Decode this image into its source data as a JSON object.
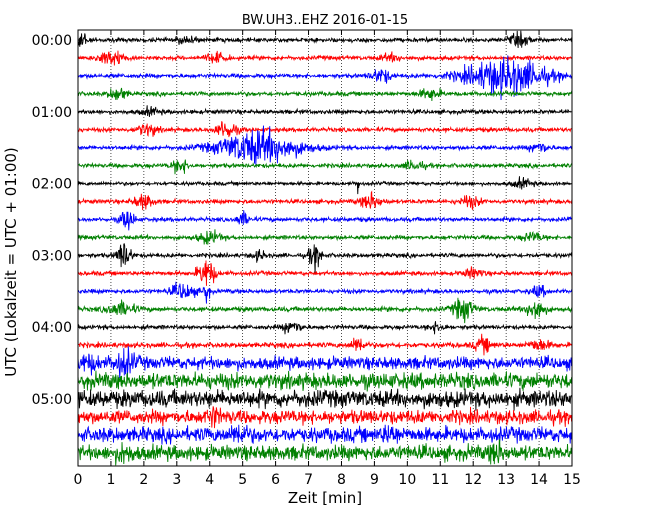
{
  "chart_data": {
    "type": "line",
    "title": "BW.UH3..EHZ 2016-01-15",
    "xlabel": "Zeit  [min]",
    "ylabel": "UTC (Lokalzeit = UTC + 01:00)",
    "xlim": [
      0,
      15
    ],
    "x_ticks": [
      0,
      1,
      2,
      3,
      4,
      5,
      6,
      7,
      8,
      9,
      10,
      11,
      12,
      13,
      14,
      15
    ],
    "y_ticks": [
      "00:00",
      "01:00",
      "02:00",
      "03:00",
      "04:00",
      "05:00"
    ],
    "grid": "vertical dotted at each minute",
    "trace_minutes": 15,
    "colors_cycle": [
      "#000000",
      "#ff0000",
      "#0000ff",
      "#008000"
    ],
    "series": [
      {
        "start": "00:00",
        "color": "#000000",
        "amplitude": 0.18,
        "events": [
          {
            "t": 0.1,
            "a": 0.9,
            "w": 0.15
          },
          {
            "t": 3.3,
            "a": 0.4,
            "w": 0.25
          },
          {
            "t": 13.4,
            "a": 0.5,
            "w": 0.3
          }
        ]
      },
      {
        "start": "00:15",
        "color": "#ff0000",
        "amplitude": 0.18,
        "events": [
          {
            "t": 1.0,
            "a": 0.7,
            "w": 0.35
          },
          {
            "t": 4.2,
            "a": 0.4,
            "w": 0.3
          },
          {
            "t": 9.5,
            "a": 0.3,
            "w": 0.3
          }
        ]
      },
      {
        "start": "00:30",
        "color": "#0000ff",
        "amplitude": 0.18,
        "events": [
          {
            "t": 9.2,
            "a": 0.6,
            "w": 0.3
          },
          {
            "t": 13.0,
            "a": 1.6,
            "w": 1.2
          }
        ]
      },
      {
        "start": "00:45",
        "color": "#008000",
        "amplitude": 0.18,
        "events": [
          {
            "t": 1.2,
            "a": 0.6,
            "w": 0.25
          },
          {
            "t": 10.7,
            "a": 0.5,
            "w": 0.3
          }
        ]
      },
      {
        "start": "01:00",
        "color": "#000000",
        "amplitude": 0.18,
        "events": [
          {
            "t": 2.2,
            "a": 0.3,
            "w": 0.3
          }
        ]
      },
      {
        "start": "01:15",
        "color": "#ff0000",
        "amplitude": 0.18,
        "events": [
          {
            "t": 2.1,
            "a": 0.5,
            "w": 0.3
          },
          {
            "t": 4.5,
            "a": 0.8,
            "w": 0.3
          }
        ]
      },
      {
        "start": "01:30",
        "color": "#0000ff",
        "amplitude": 0.18,
        "events": [
          {
            "t": 5.5,
            "a": 1.5,
            "w": 1.2
          },
          {
            "t": 14.0,
            "a": 0.5,
            "w": 0.25
          }
        ]
      },
      {
        "start": "01:45",
        "color": "#008000",
        "amplitude": 0.18,
        "events": [
          {
            "t": 3.1,
            "a": 0.6,
            "w": 0.25
          },
          {
            "t": 10.2,
            "a": 0.4,
            "w": 0.3
          }
        ]
      },
      {
        "start": "02:00",
        "color": "#000000",
        "amplitude": 0.15,
        "events": [
          {
            "t": 8.5,
            "a": 1.2,
            "w": 0.04
          },
          {
            "t": 13.5,
            "a": 0.4,
            "w": 0.3
          }
        ]
      },
      {
        "start": "02:15",
        "color": "#ff0000",
        "amplitude": 0.18,
        "events": [
          {
            "t": 2.0,
            "a": 0.6,
            "w": 0.3
          },
          {
            "t": 8.9,
            "a": 0.7,
            "w": 0.3
          },
          {
            "t": 11.9,
            "a": 0.5,
            "w": 0.3
          }
        ]
      },
      {
        "start": "02:30",
        "color": "#0000ff",
        "amplitude": 0.18,
        "events": [
          {
            "t": 1.5,
            "a": 0.9,
            "w": 0.2
          },
          {
            "t": 5.0,
            "a": 0.6,
            "w": 0.2
          }
        ]
      },
      {
        "start": "02:45",
        "color": "#008000",
        "amplitude": 0.18,
        "events": [
          {
            "t": 4.0,
            "a": 0.5,
            "w": 0.35
          },
          {
            "t": 13.8,
            "a": 0.4,
            "w": 0.3
          }
        ]
      },
      {
        "start": "03:00",
        "color": "#000000",
        "amplitude": 0.18,
        "events": [
          {
            "t": 1.4,
            "a": 1.2,
            "w": 0.2
          },
          {
            "t": 7.2,
            "a": 1.0,
            "w": 0.2
          },
          {
            "t": 5.5,
            "a": 0.4,
            "w": 0.2
          }
        ]
      },
      {
        "start": "03:15",
        "color": "#ff0000",
        "amplitude": 0.18,
        "events": [
          {
            "t": 3.9,
            "a": 1.3,
            "w": 0.25
          },
          {
            "t": 12.0,
            "a": 0.4,
            "w": 0.3
          }
        ]
      },
      {
        "start": "03:30",
        "color": "#0000ff",
        "amplitude": 0.18,
        "events": [
          {
            "t": 3.2,
            "a": 0.7,
            "w": 0.35
          },
          {
            "t": 3.9,
            "a": 0.9,
            "w": 0.1
          },
          {
            "t": 14.0,
            "a": 0.5,
            "w": 0.2
          }
        ]
      },
      {
        "start": "03:45",
        "color": "#008000",
        "amplitude": 0.2,
        "events": [
          {
            "t": 1.3,
            "a": 0.6,
            "w": 0.4
          },
          {
            "t": 11.7,
            "a": 1.0,
            "w": 0.3
          },
          {
            "t": 13.9,
            "a": 1.1,
            "w": 0.25
          }
        ]
      },
      {
        "start": "04:00",
        "color": "#000000",
        "amplitude": 0.18,
        "events": [
          {
            "t": 6.5,
            "a": 0.6,
            "w": 0.25
          },
          {
            "t": 10.9,
            "a": 0.4,
            "w": 0.25
          }
        ]
      },
      {
        "start": "04:15",
        "color": "#ff0000",
        "amplitude": 0.22,
        "events": [
          {
            "t": 8.5,
            "a": 0.7,
            "w": 0.2
          },
          {
            "t": 12.3,
            "a": 0.6,
            "w": 0.25
          },
          {
            "t": 14.0,
            "a": 0.5,
            "w": 0.3
          }
        ]
      },
      {
        "start": "04:30",
        "color": "#0000ff",
        "amplitude": 0.55,
        "events": [
          {
            "t": 1.4,
            "a": 0.9,
            "w": 0.3
          },
          {
            "t": 0.3,
            "a": 0.5,
            "w": 0.3
          }
        ]
      },
      {
        "start": "04:45",
        "color": "#008000",
        "amplitude": 0.7,
        "events": []
      },
      {
        "start": "05:00",
        "color": "#000000",
        "amplitude": 0.75,
        "events": []
      },
      {
        "start": "05:15",
        "color": "#ff0000",
        "amplitude": 0.6,
        "events": [
          {
            "t": 4.1,
            "a": 0.6,
            "w": 0.2
          }
        ]
      },
      {
        "start": "05:30",
        "color": "#0000ff",
        "amplitude": 0.65,
        "events": [
          {
            "t": 4.9,
            "a": 0.6,
            "w": 0.25
          },
          {
            "t": 9.5,
            "a": 0.5,
            "w": 0.25
          }
        ]
      },
      {
        "start": "05:45",
        "color": "#008000",
        "amplitude": 0.65,
        "events": [
          {
            "t": 1.4,
            "a": 0.5,
            "w": 0.25
          },
          {
            "t": 12.7,
            "a": 0.7,
            "w": 0.2
          }
        ]
      }
    ]
  }
}
